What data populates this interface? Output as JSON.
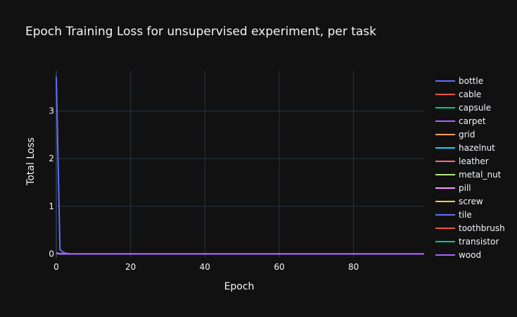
{
  "chart_data": {
    "type": "line",
    "title": "Epoch Training Loss for unsupervised experiment, per task",
    "xlabel": "Epoch",
    "ylabel": "Total Loss",
    "xlim": [
      0,
      99
    ],
    "ylim": [
      -0.08,
      3.85
    ],
    "x_ticks": [
      0,
      20,
      40,
      60,
      80
    ],
    "y_ticks": [
      0,
      1,
      2,
      3
    ],
    "grid": true,
    "legend_position": "right",
    "background": "#111111",
    "grid_color": "#283442",
    "text_color": "#f2f5fa",
    "num_epochs": 100,
    "series": [
      {
        "name": "bottle",
        "color": "#636efa",
        "values": [
          3.72,
          0.09,
          0.03,
          0.01,
          0.005
        ]
      },
      {
        "name": "cable",
        "color": "#EF553B",
        "values": [
          0.02,
          0.005,
          0.002,
          0.001,
          0.001
        ]
      },
      {
        "name": "capsule",
        "color": "#00cc96",
        "values": [
          0.02,
          0.005,
          0.002,
          0.001,
          0.001
        ]
      },
      {
        "name": "carpet",
        "color": "#ab63fa",
        "values": [
          0.02,
          0.005,
          0.002,
          0.001,
          0.001
        ]
      },
      {
        "name": "grid",
        "color": "#FFA15A",
        "values": [
          0.02,
          0.005,
          0.002,
          0.001,
          0.001
        ]
      },
      {
        "name": "hazelnut",
        "color": "#19d3f3",
        "values": [
          0.02,
          0.005,
          0.002,
          0.001,
          0.001
        ]
      },
      {
        "name": "leather",
        "color": "#FF6692",
        "values": [
          0.02,
          0.005,
          0.002,
          0.001,
          0.001
        ]
      },
      {
        "name": "metal_nut",
        "color": "#B6E880",
        "values": [
          0.02,
          0.005,
          0.002,
          0.001,
          0.001
        ]
      },
      {
        "name": "pill",
        "color": "#FF97FF",
        "values": [
          0.02,
          0.005,
          0.002,
          0.001,
          0.001
        ]
      },
      {
        "name": "screw",
        "color": "#FECB52",
        "values": [
          0.02,
          0.005,
          0.002,
          0.001,
          0.001
        ]
      },
      {
        "name": "tile",
        "color": "#636efa",
        "values": [
          0.02,
          0.005,
          0.002,
          0.001,
          0.001
        ]
      },
      {
        "name": "toothbrush",
        "color": "#EF553B",
        "values": [
          0.02,
          0.005,
          0.002,
          0.001,
          0.001
        ]
      },
      {
        "name": "transistor",
        "color": "#00cc96",
        "values": [
          0.02,
          0.005,
          0.002,
          0.001,
          0.001
        ]
      },
      {
        "name": "wood",
        "color": "#ab63fa",
        "values": [
          0.02,
          0.005,
          0.002,
          0.001,
          0.001
        ]
      }
    ]
  }
}
